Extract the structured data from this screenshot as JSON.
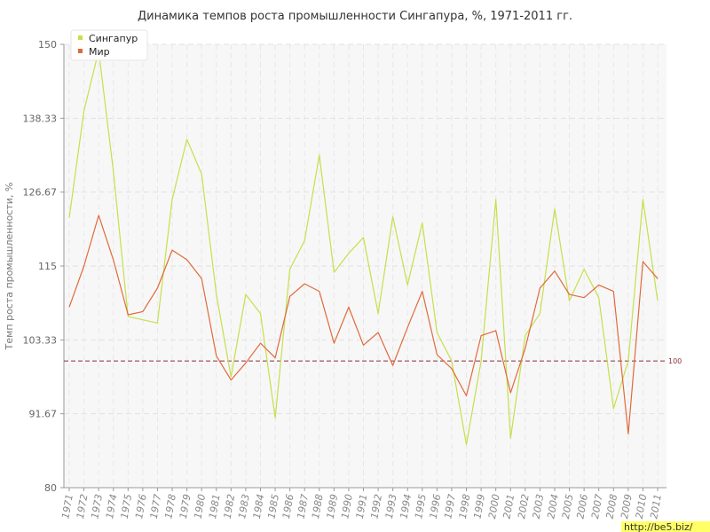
{
  "chart_data": {
    "type": "line",
    "title": "Динамика темпов роста промышленности Сингапура, %, 1971-2011 гг.",
    "ylabel": "Темп роста промышленности, %",
    "xlabel": "",
    "ylim": [
      80,
      150
    ],
    "yticks": [
      "80",
      "91.67",
      "103.33",
      "115",
      "126.67",
      "138.33",
      "150"
    ],
    "grid": true,
    "legend_position": "top-left",
    "x": [
      "1971",
      "1972",
      "1973",
      "1974",
      "1975",
      "1976",
      "1977",
      "1978",
      "1979",
      "1980",
      "1981",
      "1982",
      "1983",
      "1984",
      "1985",
      "1986",
      "1987",
      "1988",
      "1989",
      "1990",
      "1991",
      "1992",
      "1993",
      "1994",
      "1995",
      "1996",
      "1997",
      "1998",
      "1999",
      "2000",
      "2001",
      "2002",
      "2003",
      "2004",
      "2005",
      "2006",
      "2007",
      "2008",
      "2009",
      "2010",
      "2011"
    ],
    "series": [
      {
        "name": "Сингапур",
        "color": "#c5e04a",
        "values": [
          122.6,
          139.5,
          149.0,
          130.0,
          107.0,
          106.5,
          106.0,
          125.5,
          135.0,
          129.5,
          110.5,
          97.5,
          110.5,
          107.5,
          91.0,
          114.5,
          119.0,
          132.5,
          114.0,
          117.0,
          119.5,
          107.5,
          122.8,
          112.0,
          121.8,
          104.5,
          100.0,
          86.8,
          100.0,
          125.5,
          87.8,
          104.0,
          107.5,
          124.0,
          109.5,
          114.5,
          110.0,
          92.5,
          100.0,
          125.5,
          109.5
        ]
      },
      {
        "name": "Мир",
        "color": "#e06a3c",
        "values": [
          108.5,
          115.0,
          123.0,
          116.0,
          107.3,
          107.8,
          111.5,
          117.5,
          116.0,
          113.0,
          100.8,
          97.0,
          99.7,
          102.8,
          100.5,
          110.2,
          112.2,
          111.0,
          102.8,
          108.5,
          102.5,
          104.5,
          99.3,
          105.3,
          111.0,
          101.0,
          98.8,
          94.5,
          104.0,
          104.8,
          95.0,
          102.0,
          111.5,
          114.2,
          110.5,
          110.0,
          112.0,
          111.0,
          88.5,
          115.7,
          113.0
        ]
      }
    ],
    "reference_line": {
      "value": 100,
      "label": "100",
      "color": "#8a2e3b"
    }
  },
  "watermark": "http://be5.biz/"
}
